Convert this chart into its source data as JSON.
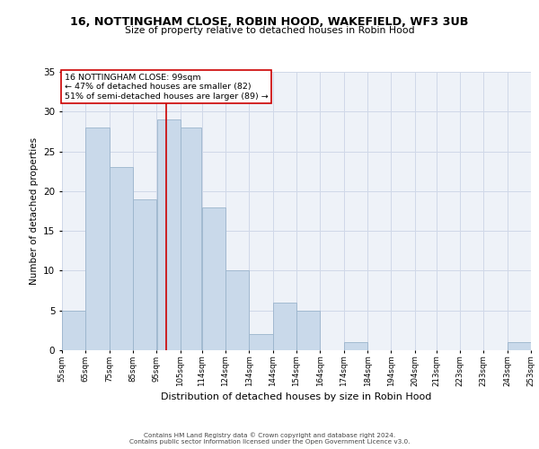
{
  "title": "16, NOTTINGHAM CLOSE, ROBIN HOOD, WAKEFIELD, WF3 3UB",
  "subtitle": "Size of property relative to detached houses in Robin Hood",
  "xlabel": "Distribution of detached houses by size in Robin Hood",
  "ylabel": "Number of detached properties",
  "bar_color": "#c9d9ea",
  "bar_edgecolor": "#9ab4cc",
  "grid_color": "#d0d8e8",
  "background_color": "#eef2f8",
  "vline_x": 99,
  "vline_color": "#cc0000",
  "annotation_text": "16 NOTTINGHAM CLOSE: 99sqm\n← 47% of detached houses are smaller (82)\n51% of semi-detached houses are larger (89) →",
  "annotation_box_edgecolor": "#cc0000",
  "bins": [
    55,
    65,
    75,
    85,
    95,
    105,
    114,
    124,
    134,
    144,
    154,
    164,
    174,
    184,
    194,
    204,
    213,
    223,
    233,
    243,
    253
  ],
  "counts": [
    5,
    28,
    23,
    19,
    29,
    28,
    18,
    10,
    2,
    6,
    5,
    0,
    1,
    0,
    0,
    0,
    0,
    0,
    0,
    1
  ],
  "tick_labels": [
    "55sqm",
    "65sqm",
    "75sqm",
    "85sqm",
    "95sqm",
    "105sqm",
    "114sqm",
    "124sqm",
    "134sqm",
    "144sqm",
    "154sqm",
    "164sqm",
    "174sqm",
    "184sqm",
    "194sqm",
    "204sqm",
    "213sqm",
    "223sqm",
    "233sqm",
    "243sqm",
    "253sqm"
  ],
  "ylim": [
    0,
    35
  ],
  "yticks": [
    0,
    5,
    10,
    15,
    20,
    25,
    30,
    35
  ],
  "footer_line1": "Contains HM Land Registry data © Crown copyright and database right 2024.",
  "footer_line2": "Contains public sector information licensed under the Open Government Licence v3.0."
}
